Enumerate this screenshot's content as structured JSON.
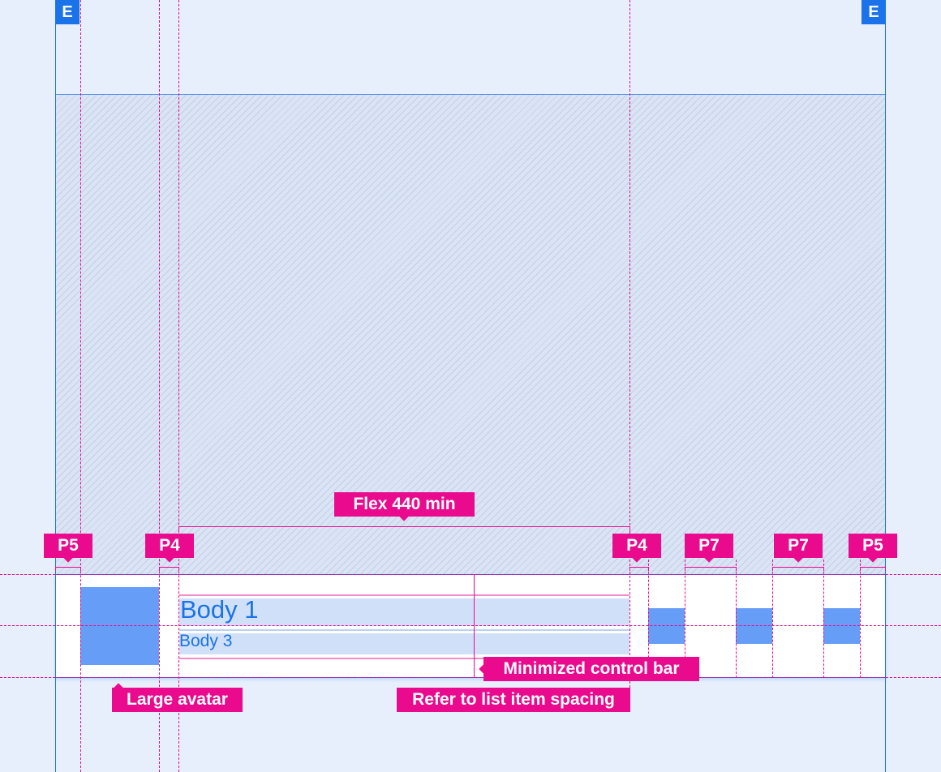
{
  "edge_badges": {
    "left": "E",
    "right": "E"
  },
  "labels": {
    "flex": "Flex 440 min",
    "padding_left_outer": "P5",
    "padding_avatar_text": "P4",
    "padding_text_icons": "P4",
    "padding_icon_gap_1": "P7",
    "padding_icon_gap_2": "P7",
    "padding_right_outer": "P5",
    "large_avatar": "Large avatar",
    "list_item_spacing": "Refer to list item spacing",
    "minimized_control_bar": "Minimized control bar"
  },
  "control_bar": {
    "primary_text": "Body 1",
    "secondary_text": "Body 3",
    "icon_buttons": 3
  },
  "colors": {
    "background": "#e8effc",
    "accent": "#1a73e8",
    "annotation": "#ea0a8e",
    "placeholder": "#669df6"
  }
}
